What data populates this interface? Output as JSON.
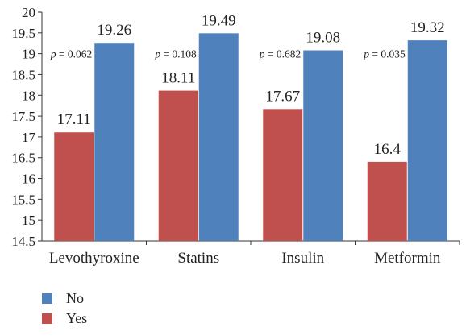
{
  "chart_data": {
    "type": "bar",
    "categories": [
      "Levothyroxine",
      "Statins",
      "Insulin",
      "Metformin"
    ],
    "series": [
      {
        "name": "Yes",
        "values": [
          17.11,
          18.11,
          17.67,
          16.4
        ],
        "labels": [
          "17.11",
          "18.11",
          "17.67",
          "16.4"
        ],
        "color": "#c0504d"
      },
      {
        "name": "No",
        "values": [
          19.26,
          19.49,
          19.08,
          19.32
        ],
        "labels": [
          "19.26",
          "19.49",
          "19.08",
          "19.32"
        ],
        "color": "#4f81bd"
      }
    ],
    "annotations": [
      {
        "prefix": "p",
        "text": " = 0.062"
      },
      {
        "prefix": "p",
        "text": " = 0.108"
      },
      {
        "prefix": "p",
        "text": " = 0.682"
      },
      {
        "prefix": "p",
        "text": " = 0.035"
      }
    ],
    "yticks": [
      "20",
      "19.5",
      "19",
      "18.5",
      "18",
      "17.5",
      "17",
      "16.5",
      "16",
      "15.5",
      "15",
      "14.5"
    ],
    "ylim": [
      14.5,
      20
    ],
    "legend": [
      {
        "name": "No",
        "color": "#4f81bd"
      },
      {
        "name": "Yes",
        "color": "#c0504d"
      }
    ],
    "legend_placement": "bottom-left",
    "grid": false
  }
}
